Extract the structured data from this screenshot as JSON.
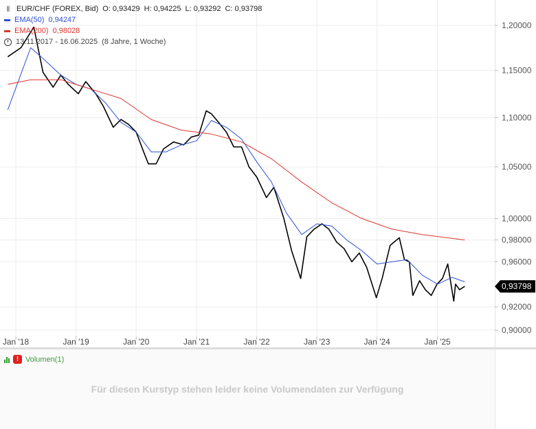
{
  "legend": {
    "ohlc_icon": "ohlc-bars-icon",
    "instrument": "EUR/CHF (FOREX, Bid)",
    "open_label": "O:",
    "open": "0,93429",
    "high_label": "H:",
    "high": "0,94225",
    "low_label": "L:",
    "low": "0,93292",
    "close_label": "C:",
    "close": "0,93798",
    "ema50_label": "EMA(50)",
    "ema50_value": "0,94247",
    "ema200_label": "EMA(200)",
    "ema200_value": "0,98028",
    "range_icon": "clock-icon",
    "date_range": "13.11.2017 - 16.06.2025",
    "duration": "(8 Jahre, 1 Woche)"
  },
  "colors": {
    "price": "#000000",
    "ema50": "#2b4ed6",
    "ema200": "#e0332b",
    "grid": "#ececec"
  },
  "chart_data": {
    "type": "line",
    "title": "EUR/CHF (FOREX, Bid)",
    "scale": "log",
    "ylim": [
      0.895,
      1.215
    ],
    "x_range": [
      "2017-11-13",
      "2025-06-16"
    ],
    "y_ticks": [
      {
        "v": 1.2,
        "label": "1,20000"
      },
      {
        "v": 1.15,
        "label": "1,15000"
      },
      {
        "v": 1.1,
        "label": "1,10000"
      },
      {
        "v": 1.05,
        "label": "1,05000"
      },
      {
        "v": 1.0,
        "label": "1,00000"
      },
      {
        "v": 0.98,
        "label": "0,98000"
      },
      {
        "v": 0.96,
        "label": "0,96000"
      },
      {
        "v": 0.92,
        "label": "0,92000"
      },
      {
        "v": 0.9,
        "label": "0,90000"
      }
    ],
    "x_ticks": [
      {
        "date": "2018-01-01",
        "label": "Jan '18"
      },
      {
        "date": "2019-01-01",
        "label": "Jan '19"
      },
      {
        "date": "2020-01-01",
        "label": "Jan '20"
      },
      {
        "date": "2021-01-01",
        "label": "Jan '21"
      },
      {
        "date": "2022-01-01",
        "label": "Jan '22"
      },
      {
        "date": "2023-01-01",
        "label": "Jan '23"
      },
      {
        "date": "2024-01-01",
        "label": "Jan '24"
      },
      {
        "date": "2025-01-01",
        "label": "Jan '25"
      }
    ],
    "last_price": {
      "v": 0.93798,
      "label": "0,93798"
    },
    "series": [
      {
        "name": "EUR/CHF",
        "x": [
          "2017-11-13",
          "2018-02-01",
          "2018-04-20",
          "2018-06-15",
          "2018-08-15",
          "2018-10-01",
          "2018-11-15",
          "2019-01-15",
          "2019-03-01",
          "2019-05-01",
          "2019-06-15",
          "2019-08-15",
          "2019-10-01",
          "2019-11-15",
          "2020-01-01",
          "2020-02-15",
          "2020-03-15",
          "2020-05-01",
          "2020-06-15",
          "2020-08-15",
          "2020-10-15",
          "2020-12-01",
          "2021-01-15",
          "2021-03-01",
          "2021-04-01",
          "2021-05-15",
          "2021-07-01",
          "2021-08-15",
          "2021-10-01",
          "2021-11-15",
          "2022-01-01",
          "2022-03-01",
          "2022-04-15",
          "2022-06-15",
          "2022-08-01",
          "2022-09-25",
          "2022-11-01",
          "2022-12-15",
          "2023-02-01",
          "2023-03-15",
          "2023-05-01",
          "2023-06-15",
          "2023-08-01",
          "2023-09-15",
          "2023-10-30",
          "2023-12-28",
          "2024-02-01",
          "2024-03-20",
          "2024-05-15",
          "2024-06-15",
          "2024-07-15",
          "2024-08-05",
          "2024-09-15",
          "2024-10-20",
          "2024-11-25",
          "2024-12-30",
          "2025-02-01",
          "2025-03-05",
          "2025-04-10",
          "2025-04-21",
          "2025-05-15",
          "2025-06-16"
        ],
        "values": [
          1.165,
          1.175,
          1.198,
          1.148,
          1.132,
          1.145,
          1.135,
          1.125,
          1.138,
          1.125,
          1.112,
          1.09,
          1.098,
          1.093,
          1.085,
          1.065,
          1.053,
          1.053,
          1.068,
          1.075,
          1.072,
          1.08,
          1.082,
          1.107,
          1.104,
          1.095,
          1.085,
          1.07,
          1.07,
          1.05,
          1.04,
          1.02,
          1.03,
          1.0,
          0.97,
          0.945,
          0.983,
          0.99,
          0.995,
          0.99,
          0.978,
          0.972,
          0.96,
          0.968,
          0.955,
          0.928,
          0.945,
          0.975,
          0.982,
          0.962,
          0.96,
          0.93,
          0.943,
          0.935,
          0.93,
          0.94,
          0.945,
          0.958,
          0.925,
          0.94,
          0.935,
          0.938
        ]
      },
      {
        "name": "EMA(50)",
        "x": [
          "2017-11-13",
          "2018-04-01",
          "2018-06-15",
          "2018-10-01",
          "2019-01-01",
          "2019-04-01",
          "2019-07-01",
          "2019-10-01",
          "2020-01-01",
          "2020-04-01",
          "2020-07-01",
          "2020-10-01",
          "2021-01-01",
          "2021-04-01",
          "2021-07-01",
          "2021-10-01",
          "2022-01-01",
          "2022-04-01",
          "2022-07-01",
          "2022-10-01",
          "2023-01-01",
          "2023-04-01",
          "2023-07-01",
          "2023-10-01",
          "2024-01-01",
          "2024-04-01",
          "2024-07-01",
          "2024-10-01",
          "2025-01-01",
          "2025-04-01",
          "2025-06-16"
        ],
        "values": [
          1.108,
          1.175,
          1.163,
          1.145,
          1.135,
          1.13,
          1.115,
          1.095,
          1.085,
          1.065,
          1.065,
          1.072,
          1.076,
          1.097,
          1.09,
          1.078,
          1.055,
          1.035,
          1.005,
          0.985,
          0.995,
          0.993,
          0.98,
          0.97,
          0.958,
          0.96,
          0.962,
          0.948,
          0.94,
          0.946,
          0.942
        ]
      },
      {
        "name": "EMA(200)",
        "x": [
          "2017-11-13",
          "2018-04-01",
          "2018-10-01",
          "2019-04-01",
          "2019-10-01",
          "2020-04-01",
          "2020-10-01",
          "2021-04-01",
          "2021-10-01",
          "2022-04-01",
          "2022-10-01",
          "2023-04-01",
          "2023-10-01",
          "2024-04-01",
          "2024-10-01",
          "2025-06-16"
        ],
        "values": [
          1.135,
          1.14,
          1.14,
          1.13,
          1.12,
          1.098,
          1.087,
          1.083,
          1.075,
          1.058,
          1.035,
          1.015,
          1.0,
          0.99,
          0.985,
          0.98
        ]
      }
    ]
  },
  "volume_pane": {
    "bars_icon": "volume-bars-icon",
    "warn_icon": "warning-icon",
    "warn_glyph": "!",
    "label": "Volumen(1)",
    "message": "Für diesen Kurstyp stehen leider keine Volumendaten zur Verfügung"
  }
}
